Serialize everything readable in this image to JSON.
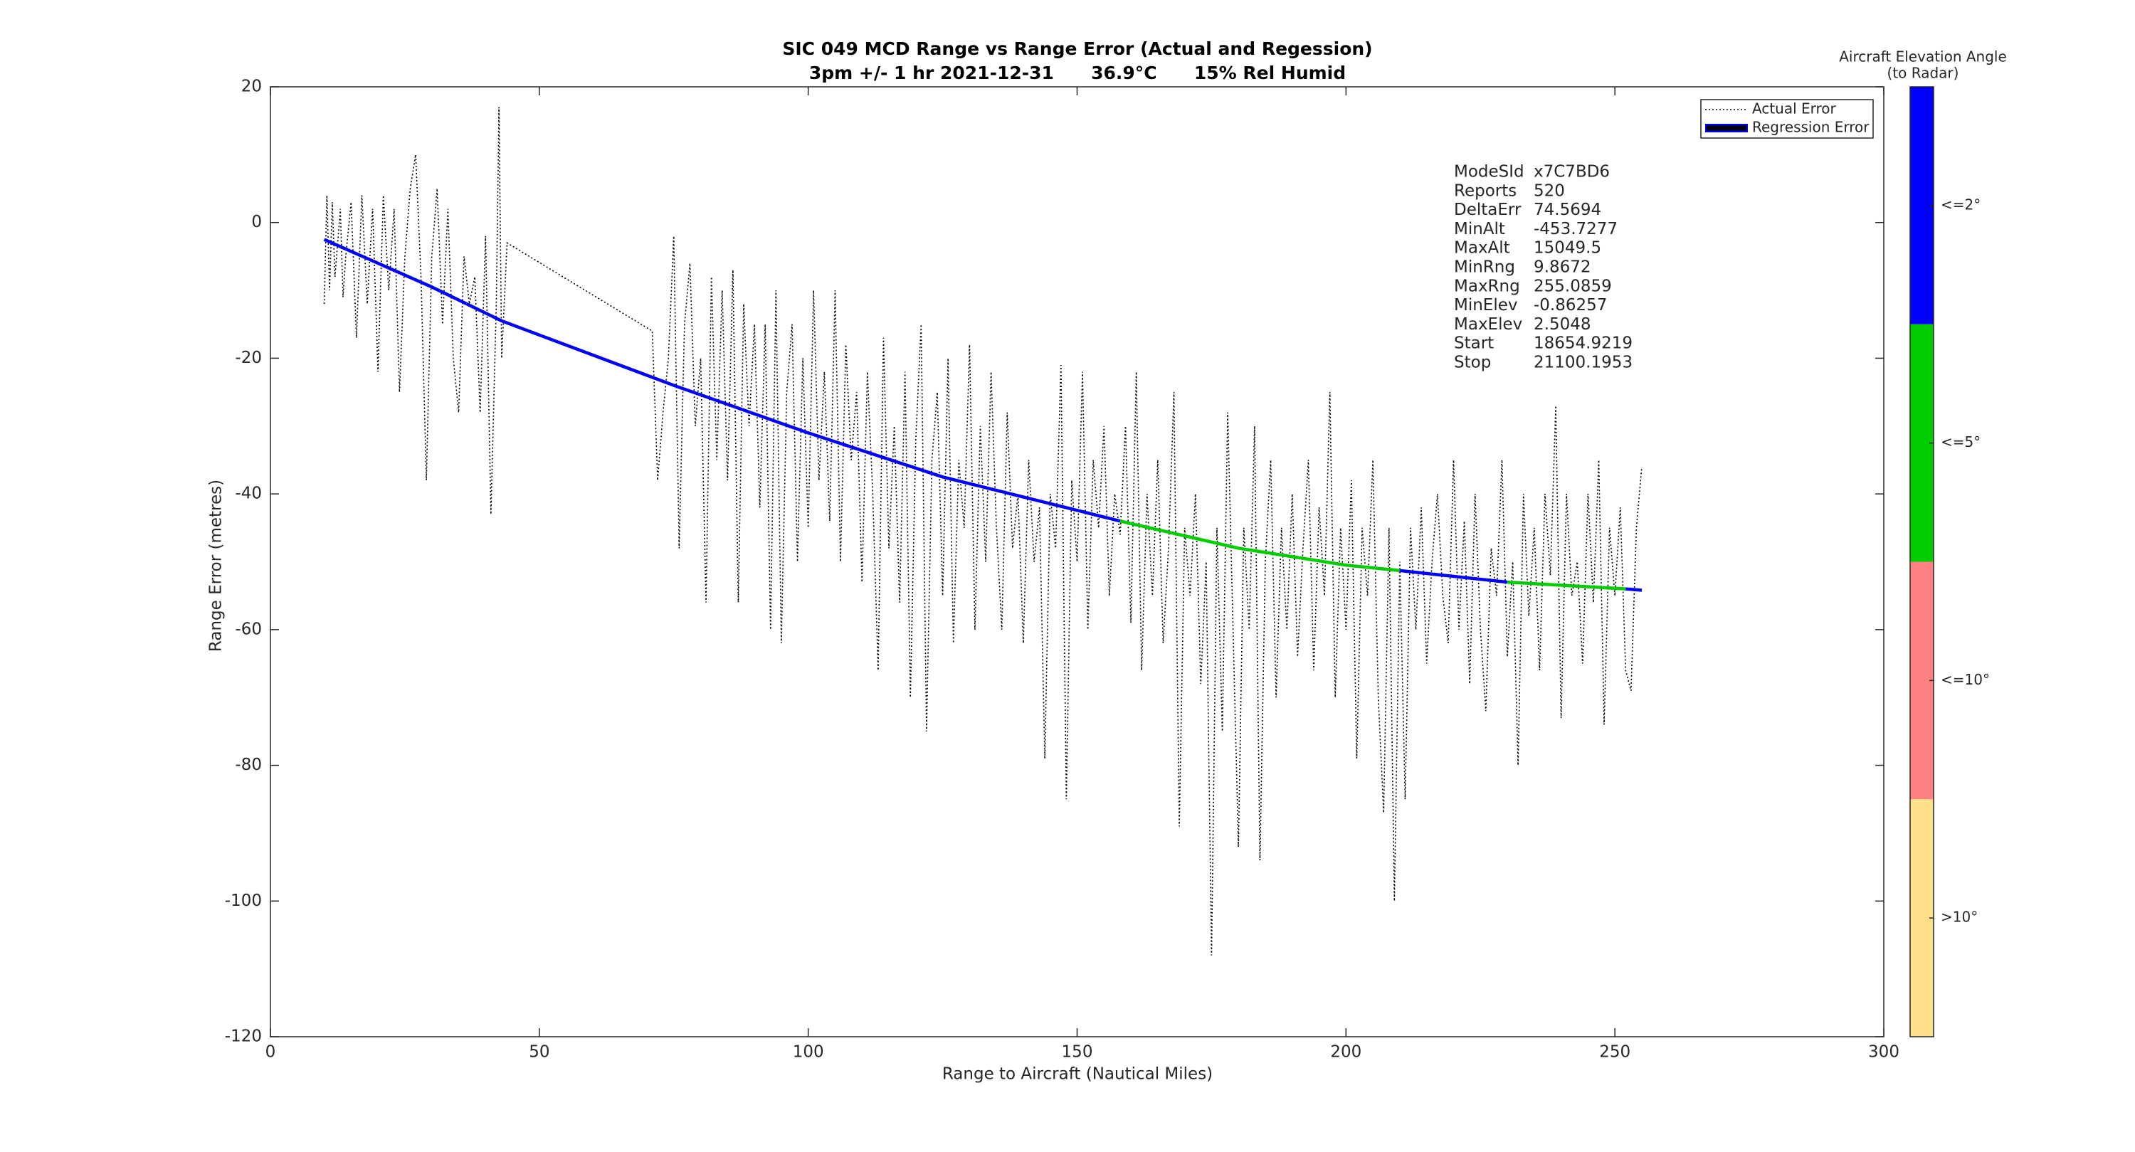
{
  "chart_data": {
    "type": "line",
    "title": "SIC 049 MCD Range vs Range Error (Actual and Regession)",
    "subtitle": "3pm +/- 1 hr 2021-12-31      36.9°C      15% Rel Humid",
    "x_label": "Range to Aircraft (Nautical Miles)",
    "y_label": "Range Error (metres)",
    "xlim": [
      0,
      300
    ],
    "xticks": [
      0,
      50,
      100,
      150,
      200,
      250,
      300
    ],
    "ylim": [
      -120,
      20
    ],
    "yticks": [
      -120,
      -100,
      -80,
      -60,
      -40,
      -20,
      0,
      20
    ],
    "legend": "upper right",
    "series": [
      {
        "name": "Actual Error",
        "color": "#000000",
        "x": [
          10,
          10.5,
          11,
          11.5,
          12,
          13,
          13.5,
          14,
          15,
          16,
          17,
          18,
          19,
          20,
          21,
          22,
          23,
          24,
          25,
          26,
          27,
          28,
          29,
          30,
          31,
          32,
          33,
          34,
          35,
          36,
          37,
          38,
          39,
          40,
          41,
          42,
          42.5,
          43,
          44,
          71,
          72,
          73,
          74,
          75,
          76,
          77,
          78,
          79,
          80,
          81,
          82,
          83,
          84,
          85,
          86,
          87,
          88,
          89,
          90,
          91,
          92,
          93,
          94,
          95,
          96,
          97,
          98,
          99,
          100,
          101,
          102,
          103,
          104,
          105,
          106,
          107,
          108,
          109,
          110,
          111,
          112,
          113,
          114,
          115,
          116,
          117,
          118,
          119,
          120,
          121,
          122,
          123,
          124,
          125,
          126,
          127,
          128,
          129,
          130,
          131,
          132,
          133,
          134,
          135,
          136,
          137,
          138,
          139,
          140,
          141,
          142,
          143,
          144,
          145,
          146,
          147,
          148,
          149,
          150,
          151,
          152,
          153,
          154,
          155,
          156,
          157,
          158,
          159,
          160,
          161,
          162,
          163,
          164,
          165,
          166,
          167,
          168,
          169,
          170,
          171,
          172,
          173,
          174,
          175,
          176,
          177,
          178,
          179,
          180,
          181,
          182,
          183,
          184,
          185,
          186,
          187,
          188,
          189,
          190,
          191,
          192,
          193,
          194,
          195,
          196,
          197,
          198,
          199,
          200,
          201,
          202,
          203,
          204,
          205,
          206,
          207,
          208,
          209,
          210,
          211,
          212,
          213,
          214,
          215,
          216,
          217,
          218,
          219,
          220,
          221,
          222,
          223,
          224,
          225,
          226,
          227,
          228,
          229,
          230,
          231,
          232,
          233,
          234,
          235,
          236,
          237,
          238,
          239,
          240,
          241,
          242,
          243,
          244,
          245,
          246,
          247,
          248,
          249,
          250,
          251,
          252,
          253,
          254,
          255
        ],
        "values": [
          -12,
          4,
          -10,
          3,
          -8,
          2,
          -11,
          -5,
          3,
          -17,
          4,
          -12,
          2,
          -22,
          4,
          -10,
          2,
          -25,
          -5,
          5,
          10,
          -8,
          -38,
          -5,
          5,
          -15,
          2,
          -20,
          -28,
          -5,
          -12,
          -8,
          -28,
          -2,
          -43,
          -12,
          17,
          -20,
          -3,
          -16,
          -38,
          -28,
          -20,
          -2,
          -48,
          -15,
          -6,
          -30,
          -20,
          -56,
          -8,
          -35,
          -10,
          -38,
          -7,
          -56,
          -12,
          -30,
          -15,
          -42,
          -15,
          -60,
          -10,
          -62,
          -25,
          -15,
          -50,
          -20,
          -45,
          -10,
          -38,
          -22,
          -44,
          -10,
          -50,
          -18,
          -35,
          -25,
          -53,
          -22,
          -40,
          -66,
          -17,
          -48,
          -30,
          -56,
          -22,
          -70,
          -32,
          -15,
          -75,
          -35,
          -25,
          -55,
          -20,
          -62,
          -35,
          -45,
          -18,
          -60,
          -30,
          -50,
          -22,
          -45,
          -60,
          -28,
          -48,
          -40,
          -62,
          -35,
          -50,
          -42,
          -79,
          -40,
          -48,
          -21,
          -85,
          -38,
          -50,
          -22,
          -60,
          -35,
          -45,
          -30,
          -55,
          -40,
          -46,
          -30,
          -59,
          -22,
          -66,
          -40,
          -55,
          -35,
          -62,
          -48,
          -25,
          -89,
          -45,
          -55,
          -40,
          -68,
          -50,
          -108,
          -45,
          -75,
          -28,
          -60,
          -92,
          -45,
          -60,
          -30,
          -94,
          -50,
          -35,
          -70,
          -45,
          -60,
          -40,
          -64,
          -48,
          -35,
          -66,
          -42,
          -55,
          -25,
          -70,
          -45,
          -60,
          -38,
          -79,
          -45,
          -55,
          -35,
          -70,
          -87,
          -45,
          -100,
          -50,
          -85,
          -45,
          -60,
          -42,
          -65,
          -50,
          -40,
          -55,
          -62,
          -35,
          -60,
          -44,
          -68,
          -40,
          -60,
          -72,
          -48,
          -55,
          -35,
          -64,
          -50,
          -80,
          -40,
          -58,
          -45,
          -66,
          -40,
          -52,
          -27,
          -73,
          -40,
          -55,
          -50,
          -65,
          -40,
          -56,
          -35,
          -74,
          -45,
          -55,
          -42,
          -66,
          -69,
          -45,
          -36
        ]
      },
      {
        "name": "Regression Error",
        "color": "#0000ff",
        "segments": [
          {
            "color": "#0000ff",
            "x": [
              10,
              30,
              43,
              75,
              100,
              125,
              158
            ],
            "values": [
              -2.5,
              -9.5,
              -14.5,
              -24,
              -31,
              -37.5,
              -44
            ]
          },
          {
            "color": "#00cc00",
            "x": [
              158,
              180,
              200,
              210
            ],
            "values": [
              -44,
              -48,
              -50.5,
              -51.3
            ]
          },
          {
            "color": "#0000ff",
            "x": [
              210,
              230
            ],
            "values": [
              -51.3,
              -53
            ]
          },
          {
            "color": "#00cc00",
            "x": [
              230,
              252
            ],
            "values": [
              -53,
              -54
            ]
          },
          {
            "color": "#0000ff",
            "x": [
              252,
              255
            ],
            "values": [
              -54,
              -54.2
            ]
          }
        ]
      }
    ],
    "stats": [
      [
        "ModeSId",
        "x7C7BD6"
      ],
      [
        "Reports",
        "520"
      ],
      [
        "DeltaErr",
        "74.5694"
      ],
      [
        "MinAlt",
        "-453.7277"
      ],
      [
        "MaxAlt",
        "15049.5"
      ],
      [
        "MinRng",
        "9.8672"
      ],
      [
        "MaxRng",
        "255.0859"
      ],
      [
        "MinElev",
        "-0.86257"
      ],
      [
        "MaxElev",
        "2.5048"
      ],
      [
        "Start",
        "18654.9219"
      ],
      [
        "Stop",
        "21100.1953"
      ]
    ],
    "colorbar": {
      "title": "Aircraft Elevation Angle",
      "subtitle": "(to Radar)",
      "labels": [
        "<=2°",
        "<=5°",
        "<=10°",
        ">10°"
      ],
      "colors": [
        "#0000ff",
        "#00cc00",
        "#ff8080",
        "#ffe08a"
      ]
    }
  }
}
